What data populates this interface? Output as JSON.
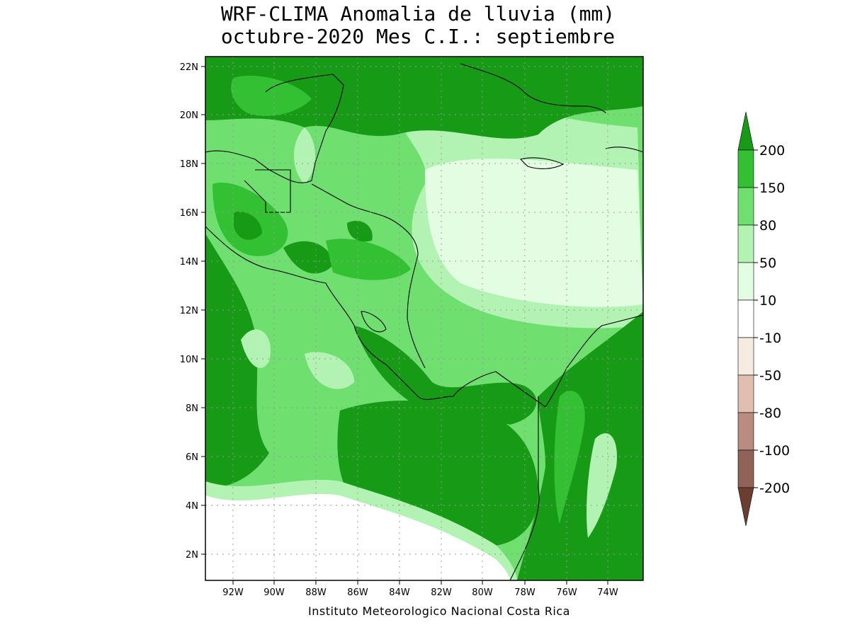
{
  "title_line1": "WRF-CLIMA Anomalia de lluvia (mm)",
  "title_line2": "octubre-2020 Mes C.I.: septiembre",
  "credit": "Instituto Meteorologico Nacional Costa Rica",
  "lat_ticks": [
    "22N",
    "20N",
    "18N",
    "16N",
    "14N",
    "12N",
    "10N",
    "8N",
    "6N",
    "4N",
    "2N"
  ],
  "lon_ticks": [
    "92W",
    "90W",
    "88W",
    "86W",
    "84W",
    "82W",
    "80W",
    "78W",
    "76W",
    "74W"
  ],
  "legend": [
    {
      "label": "200",
      "color": "#179b17"
    },
    {
      "label": "150",
      "color": "#33c133"
    },
    {
      "label": "80",
      "color": "#6fe06f"
    },
    {
      "label": "50",
      "color": "#b2f2b2"
    },
    {
      "label": "10",
      "color": "#e2fde2"
    },
    {
      "label": "-10",
      "color": "#ffffff"
    },
    {
      "label": "-50",
      "color": "#f5ebe0"
    },
    {
      "label": "-80",
      "color": "#e0bfb0"
    },
    {
      "label": "-100",
      "color": "#b88c7e"
    },
    {
      "label": "-200",
      "color": "#8f6457"
    }
  ],
  "legend_extreme_colors": {
    "high": "#179b17",
    "low": "#6b3e31"
  },
  "colors": {
    "very_high": "#179b17",
    "high": "#33c133",
    "mid": "#6fe06f",
    "low_mid": "#b2f2b2",
    "low": "#e2fde2",
    "neutral": "#ffffff",
    "coast": "#000000",
    "grid": "#9a9a9a"
  }
}
